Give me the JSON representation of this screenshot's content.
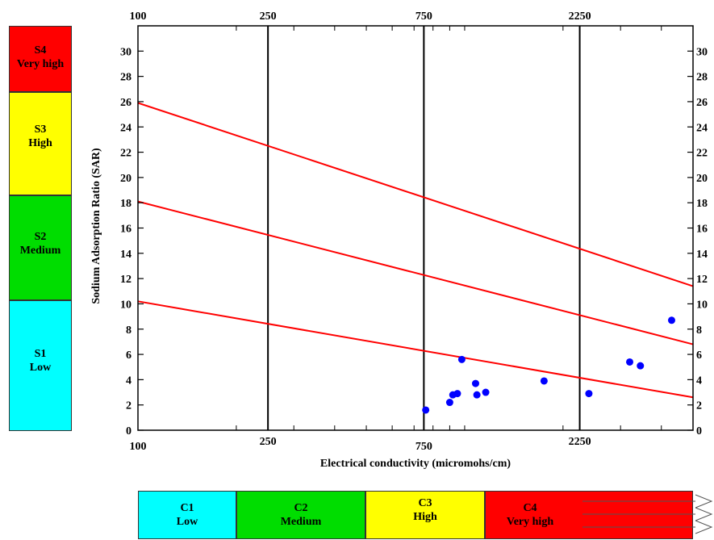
{
  "sodium_classes": [
    {
      "code": "S4",
      "label": "Very high",
      "color": "#ff0000"
    },
    {
      "code": "S3",
      "label": "High",
      "color": "#ffff00"
    },
    {
      "code": "S2",
      "label": "Medium",
      "color": "#00dd00"
    },
    {
      "code": "S1",
      "label": "Low",
      "color": "#00ffff"
    }
  ],
  "salinity_classes": [
    {
      "code": "C1",
      "label": "Low",
      "color": "#00ffff"
    },
    {
      "code": "C2",
      "label": "Medium",
      "color": "#00dd00"
    },
    {
      "code": "C3",
      "label": "High",
      "color": "#ffff00"
    },
    {
      "code": "C4",
      "label": "Very high",
      "color": "#ff0000"
    }
  ],
  "chart_data": {
    "type": "scatter",
    "title": "",
    "xlabel": "Electrical conductivity (micromohs/cm)",
    "ylabel": "Sodium Adsorption Ratio (SAR)",
    "xlim": [
      100,
      5000
    ],
    "ylim": [
      0,
      32
    ],
    "x_ticks_top": [
      "100",
      "250",
      "750",
      "2250"
    ],
    "x_ticks_bottom": [
      "100",
      "250",
      "750",
      "2250"
    ],
    "y_ticks": [
      0,
      2,
      4,
      6,
      8,
      10,
      12,
      14,
      16,
      18,
      20,
      22,
      24,
      26,
      28,
      30
    ],
    "class_boundaries_ec": [
      250,
      750,
      2250
    ],
    "boundary_lines": [
      {
        "name": "S1/S2",
        "points": [
          [
            100,
            10.2
          ],
          [
            5000,
            2.6
          ]
        ]
      },
      {
        "name": "S2/S3",
        "points": [
          [
            100,
            18.1
          ],
          [
            5000,
            6.8
          ]
        ]
      },
      {
        "name": "S3/S4",
        "points": [
          [
            100,
            25.9
          ],
          [
            5000,
            11.4
          ]
        ]
      }
    ],
    "points": [
      {
        "x": 760,
        "y": 1.6
      },
      {
        "x": 900,
        "y": 2.2
      },
      {
        "x": 920,
        "y": 2.8
      },
      {
        "x": 950,
        "y": 2.9
      },
      {
        "x": 980,
        "y": 5.6
      },
      {
        "x": 1080,
        "y": 3.7
      },
      {
        "x": 1090,
        "y": 2.8
      },
      {
        "x": 1160,
        "y": 3.0
      },
      {
        "x": 1750,
        "y": 3.9
      },
      {
        "x": 2400,
        "y": 2.9
      },
      {
        "x": 3200,
        "y": 5.4
      },
      {
        "x": 3450,
        "y": 5.1
      },
      {
        "x": 4300,
        "y": 8.7
      }
    ],
    "grid": false,
    "point_color": "#0000ff",
    "line_color": "#ff0000"
  }
}
